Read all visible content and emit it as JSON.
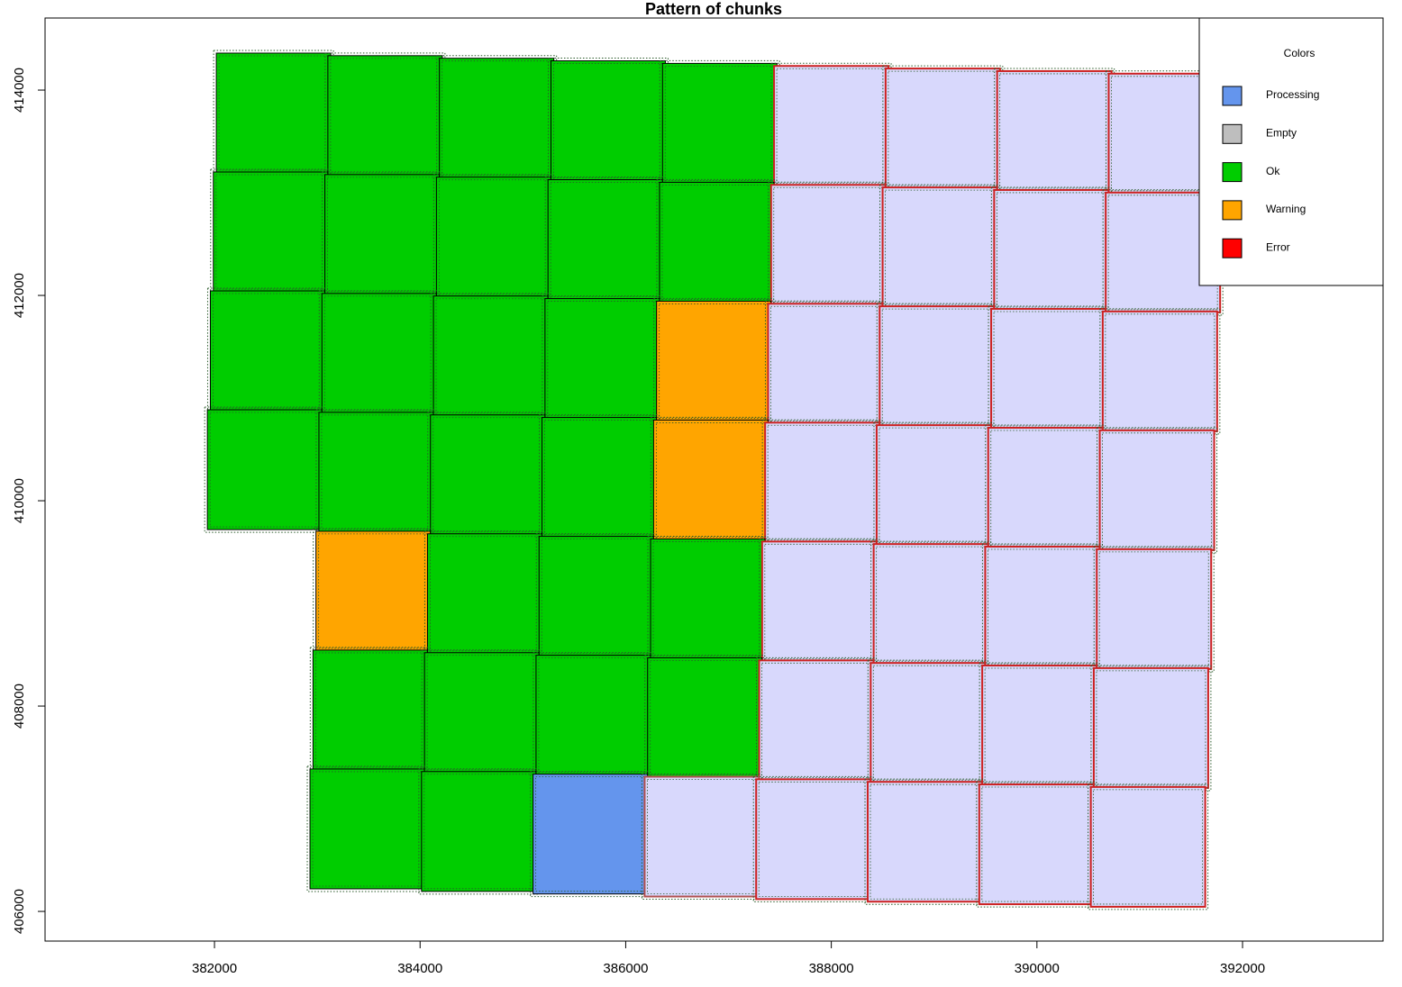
{
  "chart_data": {
    "type": "chunks",
    "title": "Pattern of chunks",
    "xlim": [
      380352,
      393367
    ],
    "ylim": [
      405711,
      414702
    ],
    "xticks": [
      382000,
      384000,
      386000,
      388000,
      390000,
      392000
    ],
    "yticks": [
      406000,
      408000,
      410000,
      412000,
      414000
    ],
    "legend": {
      "title": "Colors",
      "position": "top-right",
      "items": [
        {
          "name": "Processing",
          "color": "#6495ed"
        },
        {
          "name": "Empty",
          "color": "#bebebe"
        },
        {
          "name": "Ok",
          "color": "#00cd00"
        },
        {
          "name": "Warning",
          "color": "#ffa500"
        },
        {
          "name": "Error",
          "color": "#ff0000"
        }
      ]
    },
    "chunks": [
      {
        "x": [
          382018,
          383131
        ],
        "y": [
          413193,
          414360
        ],
        "fill": "#00cd00",
        "border": "#000000"
      },
      {
        "x": [
          383103,
          384216
        ],
        "y": [
          413168,
          414335
        ],
        "fill": "#00cd00",
        "border": "#000000"
      },
      {
        "x": [
          384188,
          385301
        ],
        "y": [
          413143,
          414310
        ],
        "fill": "#00cd00",
        "border": "#000000"
      },
      {
        "x": [
          385273,
          386386
        ],
        "y": [
          413118,
          414285
        ],
        "fill": "#00cd00",
        "border": "#000000"
      },
      {
        "x": [
          386358,
          387471
        ],
        "y": [
          413093,
          414260
        ],
        "fill": "#00cd00",
        "border": "#000000"
      },
      {
        "x": [
          387443,
          388556
        ],
        "y": [
          413068,
          414235
        ],
        "fill": "#d8d8fc",
        "border": "#cc2222"
      },
      {
        "x": [
          388528,
          389641
        ],
        "y": [
          413043,
          414210
        ],
        "fill": "#d8d8fc",
        "border": "#cc2222"
      },
      {
        "x": [
          389613,
          390726
        ],
        "y": [
          413018,
          414185
        ],
        "fill": "#d8d8fc",
        "border": "#cc2222"
      },
      {
        "x": [
          390698,
          391811
        ],
        "y": [
          412993,
          414160
        ],
        "fill": "#d8d8fc",
        "border": "#cc2222"
      },
      {
        "x": [
          381989,
          383102
        ],
        "y": [
          412035,
          413202
        ],
        "fill": "#00cd00",
        "border": "#000000"
      },
      {
        "x": [
          383074,
          384187
        ],
        "y": [
          412010,
          413177
        ],
        "fill": "#00cd00",
        "border": "#000000"
      },
      {
        "x": [
          384159,
          385272
        ],
        "y": [
          411985,
          413152
        ],
        "fill": "#00cd00",
        "border": "#000000"
      },
      {
        "x": [
          385244,
          386357
        ],
        "y": [
          411960,
          413127
        ],
        "fill": "#00cd00",
        "border": "#000000"
      },
      {
        "x": [
          386329,
          387442
        ],
        "y": [
          411935,
          413102
        ],
        "fill": "#00cd00",
        "border": "#000000"
      },
      {
        "x": [
          387414,
          388527
        ],
        "y": [
          411910,
          413077
        ],
        "fill": "#d8d8fc",
        "border": "#cc2222"
      },
      {
        "x": [
          388499,
          389612
        ],
        "y": [
          411885,
          413052
        ],
        "fill": "#d8d8fc",
        "border": "#cc2222"
      },
      {
        "x": [
          389584,
          390697
        ],
        "y": [
          411860,
          413027
        ],
        "fill": "#d8d8fc",
        "border": "#cc2222"
      },
      {
        "x": [
          390669,
          391782
        ],
        "y": [
          411835,
          413002
        ],
        "fill": "#d8d8fc",
        "border": "#cc2222"
      },
      {
        "x": [
          381960,
          383073
        ],
        "y": [
          410877,
          412044
        ],
        "fill": "#00cd00",
        "border": "#000000"
      },
      {
        "x": [
          383045,
          384158
        ],
        "y": [
          410852,
          412019
        ],
        "fill": "#00cd00",
        "border": "#000000"
      },
      {
        "x": [
          384130,
          385243
        ],
        "y": [
          410827,
          411994
        ],
        "fill": "#00cd00",
        "border": "#000000"
      },
      {
        "x": [
          385215,
          386328
        ],
        "y": [
          410802,
          411969
        ],
        "fill": "#00cd00",
        "border": "#000000"
      },
      {
        "x": [
          386300,
          387413
        ],
        "y": [
          410777,
          411944
        ],
        "fill": "#ffa500",
        "border": "#000000"
      },
      {
        "x": [
          387385,
          388498
        ],
        "y": [
          410752,
          411919
        ],
        "fill": "#d8d8fc",
        "border": "#cc2222"
      },
      {
        "x": [
          388470,
          389583
        ],
        "y": [
          410727,
          411894
        ],
        "fill": "#d8d8fc",
        "border": "#cc2222"
      },
      {
        "x": [
          389555,
          390668
        ],
        "y": [
          410702,
          411869
        ],
        "fill": "#d8d8fc",
        "border": "#cc2222"
      },
      {
        "x": [
          390640,
          391753
        ],
        "y": [
          410677,
          411844
        ],
        "fill": "#d8d8fc",
        "border": "#cc2222"
      },
      {
        "x": [
          381931,
          383044
        ],
        "y": [
          409719,
          410886
        ],
        "fill": "#00cd00",
        "border": "#000000"
      },
      {
        "x": [
          383016,
          384129
        ],
        "y": [
          409694,
          410861
        ],
        "fill": "#00cd00",
        "border": "#000000"
      },
      {
        "x": [
          384101,
          385214
        ],
        "y": [
          409669,
          410836
        ],
        "fill": "#00cd00",
        "border": "#000000"
      },
      {
        "x": [
          385186,
          386299
        ],
        "y": [
          409644,
          410811
        ],
        "fill": "#00cd00",
        "border": "#000000"
      },
      {
        "x": [
          386271,
          387384
        ],
        "y": [
          409619,
          410786
        ],
        "fill": "#ffa500",
        "border": "#000000"
      },
      {
        "x": [
          387356,
          388469
        ],
        "y": [
          409594,
          410761
        ],
        "fill": "#d8d8fc",
        "border": "#cc2222"
      },
      {
        "x": [
          388441,
          389554
        ],
        "y": [
          409569,
          410736
        ],
        "fill": "#d8d8fc",
        "border": "#cc2222"
      },
      {
        "x": [
          389526,
          390639
        ],
        "y": [
          409544,
          410711
        ],
        "fill": "#d8d8fc",
        "border": "#cc2222"
      },
      {
        "x": [
          390611,
          391724
        ],
        "y": [
          409519,
          410686
        ],
        "fill": "#d8d8fc",
        "border": "#cc2222"
      },
      {
        "x": [
          382987,
          384100
        ],
        "y": [
          408536,
          409703
        ],
        "fill": "#ffa500",
        "border": "#000000"
      },
      {
        "x": [
          384072,
          385185
        ],
        "y": [
          408511,
          409678
        ],
        "fill": "#00cd00",
        "border": "#000000"
      },
      {
        "x": [
          385157,
          386270
        ],
        "y": [
          408486,
          409653
        ],
        "fill": "#00cd00",
        "border": "#000000"
      },
      {
        "x": [
          386242,
          387355
        ],
        "y": [
          408461,
          409628
        ],
        "fill": "#00cd00",
        "border": "#000000"
      },
      {
        "x": [
          387327,
          388440
        ],
        "y": [
          408436,
          409603
        ],
        "fill": "#d8d8fc",
        "border": "#cc2222"
      },
      {
        "x": [
          388412,
          389525
        ],
        "y": [
          408411,
          409578
        ],
        "fill": "#d8d8fc",
        "border": "#cc2222"
      },
      {
        "x": [
          389497,
          390610
        ],
        "y": [
          408386,
          409553
        ],
        "fill": "#d8d8fc",
        "border": "#cc2222"
      },
      {
        "x": [
          390582,
          391695
        ],
        "y": [
          408361,
          409528
        ],
        "fill": "#d8d8fc",
        "border": "#cc2222"
      },
      {
        "x": [
          382958,
          384071
        ],
        "y": [
          407378,
          408545
        ],
        "fill": "#00cd00",
        "border": "#000000"
      },
      {
        "x": [
          384043,
          385156
        ],
        "y": [
          407353,
          408520
        ],
        "fill": "#00cd00",
        "border": "#000000"
      },
      {
        "x": [
          385128,
          386241
        ],
        "y": [
          407328,
          408495
        ],
        "fill": "#00cd00",
        "border": "#000000"
      },
      {
        "x": [
          386213,
          387326
        ],
        "y": [
          407303,
          408470
        ],
        "fill": "#00cd00",
        "border": "#000000"
      },
      {
        "x": [
          387298,
          388411
        ],
        "y": [
          407278,
          408445
        ],
        "fill": "#d8d8fc",
        "border": "#cc2222"
      },
      {
        "x": [
          388383,
          389496
        ],
        "y": [
          407253,
          408420
        ],
        "fill": "#d8d8fc",
        "border": "#cc2222"
      },
      {
        "x": [
          389468,
          390581
        ],
        "y": [
          407228,
          408395
        ],
        "fill": "#d8d8fc",
        "border": "#cc2222"
      },
      {
        "x": [
          390553,
          391666
        ],
        "y": [
          407203,
          408370
        ],
        "fill": "#d8d8fc",
        "border": "#cc2222"
      },
      {
        "x": [
          382929,
          384042
        ],
        "y": [
          406220,
          407387
        ],
        "fill": "#00cd00",
        "border": "#000000"
      },
      {
        "x": [
          384014,
          385127
        ],
        "y": [
          406195,
          407362
        ],
        "fill": "#00cd00",
        "border": "#000000"
      },
      {
        "x": [
          385099,
          386212
        ],
        "y": [
          406170,
          407337
        ],
        "fill": "#6495ed",
        "border": "#000000"
      },
      {
        "x": [
          386184,
          387297
        ],
        "y": [
          406145,
          407312
        ],
        "fill": "#d8d8fc",
        "border": "#b05050"
      },
      {
        "x": [
          387269,
          388382
        ],
        "y": [
          406120,
          407287
        ],
        "fill": "#d8d8fc",
        "border": "#cc2222"
      },
      {
        "x": [
          388354,
          389467
        ],
        "y": [
          406095,
          407262
        ],
        "fill": "#d8d8fc",
        "border": "#cc2222"
      },
      {
        "x": [
          389439,
          390552
        ],
        "y": [
          406070,
          407237
        ],
        "fill": "#d8d8fc",
        "border": "#cc2222"
      },
      {
        "x": [
          390524,
          391637
        ],
        "y": [
          406045,
          407212
        ],
        "fill": "#d8d8fc",
        "border": "#cc2222"
      }
    ]
  }
}
